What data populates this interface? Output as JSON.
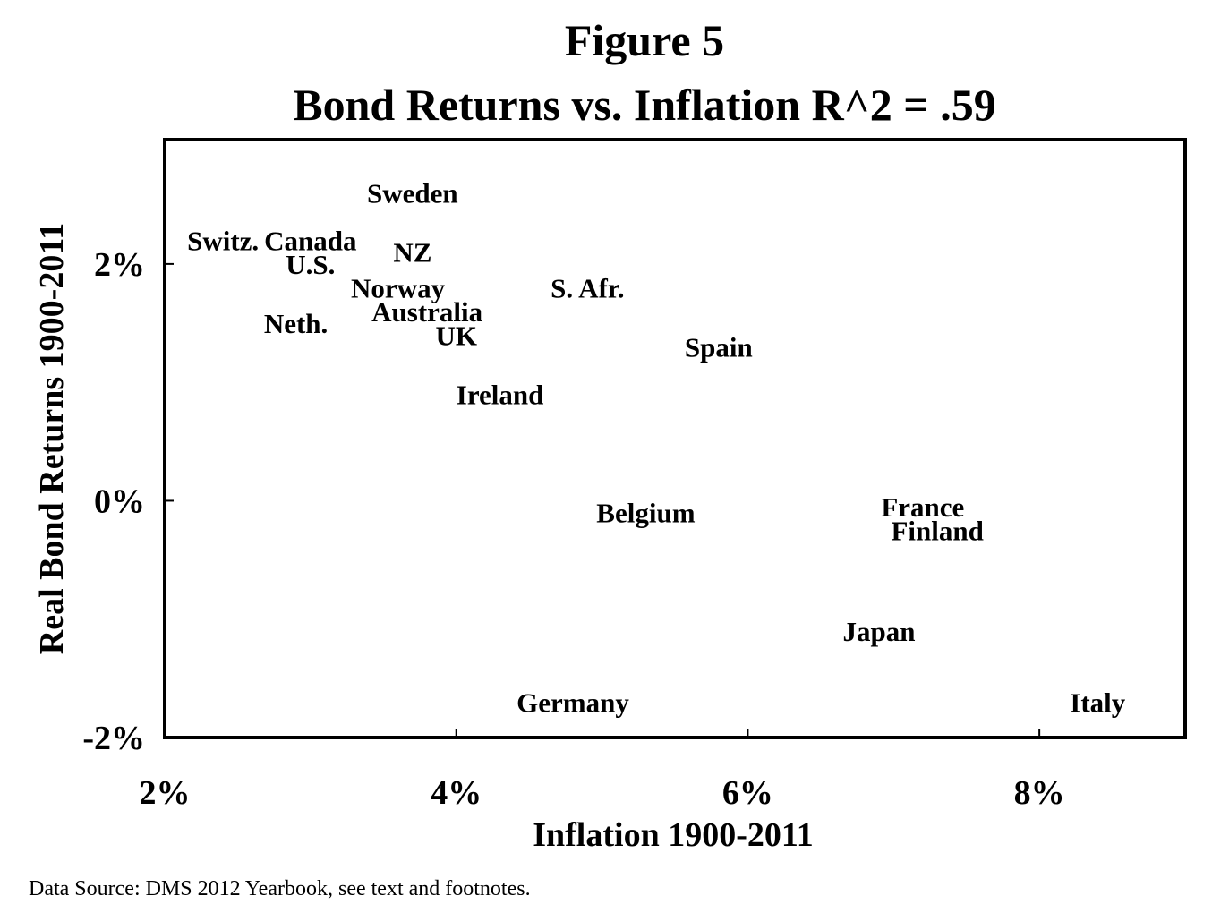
{
  "figure_label": "Figure 5",
  "source_note": "Data Source: DMS 2012 Yearbook, see text and footnotes.",
  "chart_data": {
    "type": "scatter",
    "title": "Bond Returns vs. Inflation R^2 = .59",
    "xlabel": "Inflation 1900-2011",
    "ylabel": "Real Bond Returns 1900-2011",
    "xlim": [
      2,
      9
    ],
    "ylim": [
      -2,
      3.05
    ],
    "x_ticks": [
      {
        "value": 2,
        "label": "2%"
      },
      {
        "value": 4,
        "label": "4%"
      },
      {
        "value": 6,
        "label": "6%"
      },
      {
        "value": 8,
        "label": "8%"
      }
    ],
    "y_ticks": [
      {
        "value": 2,
        "label": "2%"
      },
      {
        "value": 0,
        "label": "0%"
      },
      {
        "value": -2,
        "label": "-2%"
      }
    ],
    "grid": false,
    "legend": "none",
    "points": [
      {
        "label": "Sweden",
        "x": 3.7,
        "y": 2.6
      },
      {
        "label": "Switz.",
        "x": 2.4,
        "y": 2.2
      },
      {
        "label": "Canada",
        "x": 3.0,
        "y": 2.2
      },
      {
        "label": "U.S.",
        "x": 3.0,
        "y": 2.0
      },
      {
        "label": "NZ",
        "x": 3.7,
        "y": 2.1
      },
      {
        "label": "Norway",
        "x": 3.6,
        "y": 1.8
      },
      {
        "label": "S. Afr.",
        "x": 4.9,
        "y": 1.8
      },
      {
        "label": "Australia",
        "x": 3.8,
        "y": 1.6
      },
      {
        "label": "Neth.",
        "x": 2.9,
        "y": 1.5
      },
      {
        "label": "UK",
        "x": 4.0,
        "y": 1.4
      },
      {
        "label": "Spain",
        "x": 5.8,
        "y": 1.3
      },
      {
        "label": "Ireland",
        "x": 4.3,
        "y": 0.9
      },
      {
        "label": "Belgium",
        "x": 5.3,
        "y": -0.1
      },
      {
        "label": "France",
        "x": 7.2,
        "y": -0.05
      },
      {
        "label": "Finland",
        "x": 7.3,
        "y": -0.25
      },
      {
        "label": "Japan",
        "x": 6.9,
        "y": -1.1
      },
      {
        "label": "Germany",
        "x": 4.8,
        "y": -1.7
      },
      {
        "label": "Italy",
        "x": 8.4,
        "y": -1.7
      }
    ]
  }
}
